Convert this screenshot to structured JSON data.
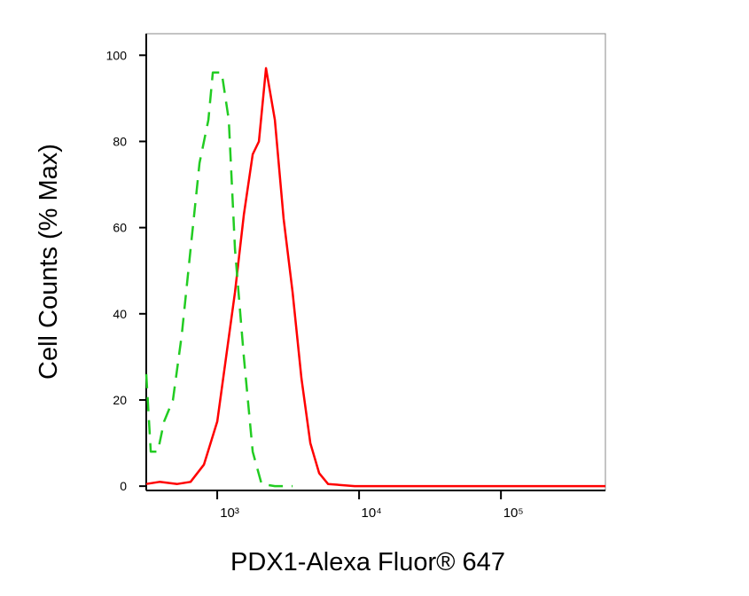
{
  "chart_data": {
    "type": "line",
    "xlabel": "PDX1-Alexa Fluor® 647",
    "ylabel": "Cell Counts (% Max)",
    "xscale": "log",
    "xlim": [
      316,
      545000
    ],
    "ylim": [
      -1,
      105
    ],
    "xticks": [
      {
        "value": 1000,
        "label": "10³"
      },
      {
        "value": 10000,
        "label": "10⁴"
      },
      {
        "value": 100000,
        "label": "10⁵"
      }
    ],
    "yticks": [
      0,
      20,
      40,
      60,
      80,
      100
    ],
    "series": [
      {
        "color": "#ff0000",
        "dash": false,
        "x": [
          316,
          392,
          523,
          649,
          806,
          1000,
          1155,
          1334,
          1540,
          1778,
          1967,
          2207,
          2548,
          2941,
          3397,
          3924,
          4529,
          5233,
          6040,
          9306,
          545000
        ],
        "values": [
          0.5,
          1,
          0.5,
          1,
          5,
          15,
          30,
          45,
          63,
          77,
          80,
          97,
          85,
          62,
          45,
          25,
          10,
          3,
          0.5,
          0,
          0
        ]
      },
      {
        "color": "#22cc22",
        "dash": true,
        "x": [
          316,
          340,
          381,
          422,
          487,
          562,
          649,
          750,
          866,
          931,
          1075,
          1206,
          1334,
          1540,
          1778,
          2054,
          2548,
          3397
        ],
        "values": [
          26,
          8,
          8,
          15,
          20,
          35,
          55,
          75,
          85,
          96,
          96,
          85,
          55,
          30,
          8,
          0.5,
          0,
          0
        ]
      }
    ]
  }
}
